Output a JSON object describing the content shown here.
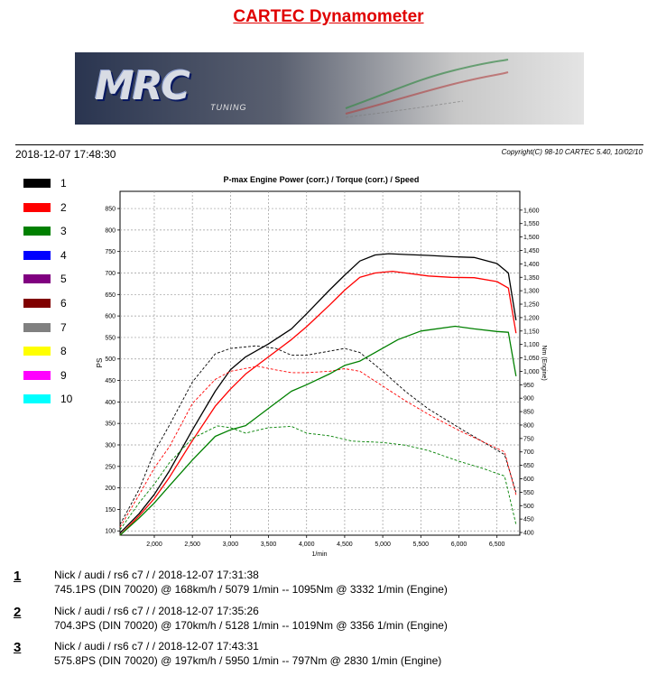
{
  "header": {
    "title": "CARTEC Dynamometer",
    "date": "2018-12-07  17:48:30",
    "copyright": "Copyright(C) 98-10 CARTEC 5.40, 10/02/10"
  },
  "banner": {
    "logo_text": "MRC",
    "logo_sub": "TUNING"
  },
  "legend": [
    {
      "label": "1",
      "color": "#000000"
    },
    {
      "label": "2",
      "color": "#ff0000"
    },
    {
      "label": "3",
      "color": "#008000"
    },
    {
      "label": "4",
      "color": "#0000ff"
    },
    {
      "label": "5",
      "color": "#800080"
    },
    {
      "label": "6",
      "color": "#800000"
    },
    {
      "label": "7",
      "color": "#808080"
    },
    {
      "label": "8",
      "color": "#ffff00"
    },
    {
      "label": "9",
      "color": "#ff00ff"
    },
    {
      "label": "10",
      "color": "#00ffff"
    }
  ],
  "chart_data": {
    "type": "line",
    "title": "P-max Engine Power (corr.) / Torque (corr.) / Speed",
    "xlabel": "1/min",
    "ylabel": "PS",
    "y2label": "Nm (Engine)",
    "xlim": [
      1550,
      6800
    ],
    "ylim": [
      90,
      890
    ],
    "y2lim": [
      390,
      1670
    ],
    "x_ticks": [
      "2,000",
      "2,500",
      "3,000",
      "3,500",
      "4,000",
      "4,500",
      "5,000",
      "5,500",
      "6,000",
      "6,500"
    ],
    "x_tick_values": [
      2000,
      2500,
      3000,
      3500,
      4000,
      4500,
      5000,
      5500,
      6000,
      6500
    ],
    "y_ticks": [
      "100",
      "150",
      "200",
      "250",
      "300",
      "350",
      "400",
      "450",
      "500",
      "550",
      "600",
      "650",
      "700",
      "750",
      "800",
      "850"
    ],
    "y_tick_values": [
      100,
      150,
      200,
      250,
      300,
      350,
      400,
      450,
      500,
      550,
      600,
      650,
      700,
      750,
      800,
      850
    ],
    "y2_ticks": [
      "400",
      "450",
      "500",
      "550",
      "600",
      "650",
      "700",
      "750",
      "800",
      "850",
      "900",
      "950",
      "1,000",
      "1,050",
      "1,100",
      "1,150",
      "1,200",
      "1,250",
      "1,300",
      "1,350",
      "1,400",
      "1,450",
      "1,500",
      "1,550",
      "1,600"
    ],
    "y2_tick_values": [
      400,
      450,
      500,
      550,
      600,
      650,
      700,
      750,
      800,
      850,
      900,
      950,
      1000,
      1050,
      1100,
      1150,
      1200,
      1250,
      1300,
      1350,
      1400,
      1450,
      1500,
      1550,
      1600
    ],
    "grid": true,
    "series": [
      {
        "name": "1",
        "kind": "power",
        "color": "#000000",
        "x": [
          1550,
          1800,
          2000,
          2200,
          2500,
          2800,
          3000,
          3200,
          3500,
          3800,
          4000,
          4300,
          4500,
          4700,
          4900,
          5079,
          5300,
          5600,
          5900,
          6200,
          6500,
          6650,
          6750
        ],
        "y": [
          95,
          140,
          185,
          240,
          335,
          425,
          475,
          505,
          535,
          570,
          605,
          660,
          695,
          728,
          742,
          745,
          743,
          741,
          738,
          736,
          722,
          700,
          590
        ]
      },
      {
        "name": "1",
        "kind": "torque",
        "color": "#000000",
        "x": [
          1550,
          1800,
          2000,
          2200,
          2500,
          2800,
          3000,
          3332,
          3600,
          3800,
          4000,
          4300,
          4500,
          4700,
          5000,
          5300,
          5600,
          6000,
          6300,
          6600,
          6750
        ],
        "y": [
          430,
          560,
          700,
          800,
          960,
          1065,
          1085,
          1095,
          1085,
          1060,
          1060,
          1075,
          1085,
          1070,
          1000,
          925,
          860,
          790,
          740,
          690,
          550
        ]
      },
      {
        "name": "2",
        "kind": "power",
        "color": "#ff0000",
        "x": [
          1550,
          1800,
          2000,
          2200,
          2500,
          2800,
          3000,
          3200,
          3500,
          3800,
          4000,
          4300,
          4500,
          4700,
          4900,
          5128,
          5300,
          5600,
          5900,
          6200,
          6500,
          6650,
          6750
        ],
        "y": [
          90,
          135,
          175,
          225,
          310,
          390,
          430,
          465,
          505,
          545,
          575,
          625,
          660,
          690,
          700,
          704,
          700,
          693,
          690,
          689,
          680,
          665,
          560
        ]
      },
      {
        "name": "2",
        "kind": "torque",
        "color": "#ff0000",
        "x": [
          1550,
          1800,
          2000,
          2200,
          2500,
          2800,
          3000,
          3356,
          3600,
          3800,
          4000,
          4300,
          4500,
          4700,
          5000,
          5300,
          5600,
          6000,
          6300,
          6600,
          6750
        ],
        "y": [
          420,
          540,
          640,
          720,
          880,
          970,
          1000,
          1019,
          1005,
          995,
          995,
          1000,
          1010,
          1000,
          945,
          890,
          840,
          780,
          740,
          700,
          540
        ]
      },
      {
        "name": "3",
        "kind": "power",
        "color": "#008000",
        "x": [
          1550,
          1800,
          2000,
          2200,
          2500,
          2800,
          3000,
          3200,
          3500,
          3800,
          4000,
          4300,
          4500,
          4700,
          4900,
          5200,
          5500,
          5950,
          6200,
          6500,
          6650,
          6750
        ],
        "y": [
          90,
          130,
          165,
          205,
          265,
          320,
          335,
          345,
          385,
          425,
          440,
          465,
          485,
          495,
          515,
          545,
          565,
          576,
          570,
          564,
          562,
          460
        ]
      },
      {
        "name": "3",
        "kind": "torque",
        "color": "#008000",
        "x": [
          1550,
          1800,
          2000,
          2200,
          2500,
          2830,
          3000,
          3200,
          3500,
          3800,
          4000,
          4300,
          4600,
          5000,
          5300,
          5600,
          6000,
          6300,
          6600,
          6750
        ],
        "y": [
          410,
          510,
          580,
          660,
          750,
          797,
          790,
          770,
          790,
          795,
          770,
          760,
          740,
          735,
          725,
          705,
          665,
          640,
          610,
          430
        ]
      }
    ]
  },
  "runs": [
    {
      "num": "1",
      "line1": "Nick / audi / rs6 c7 /   / 2018-12-07 17:31:38",
      "line2": "745.1PS (DIN 70020) @ 168km/h / 5079 1/min -- 1095Nm @ 3332 1/min (Engine)"
    },
    {
      "num": "2",
      "line1": "Nick / audi / rs6 c7 /   / 2018-12-07 17:35:26",
      "line2": "704.3PS (DIN 70020) @ 170km/h / 5128 1/min -- 1019Nm @ 3356 1/min (Engine)"
    },
    {
      "num": "3",
      "line1": "Nick / audi / rs6 c7 /   / 2018-12-07 17:43:31",
      "line2": "575.8PS (DIN 70020) @ 197km/h / 5950 1/min -- 797Nm @ 2830 1/min (Engine)"
    }
  ]
}
